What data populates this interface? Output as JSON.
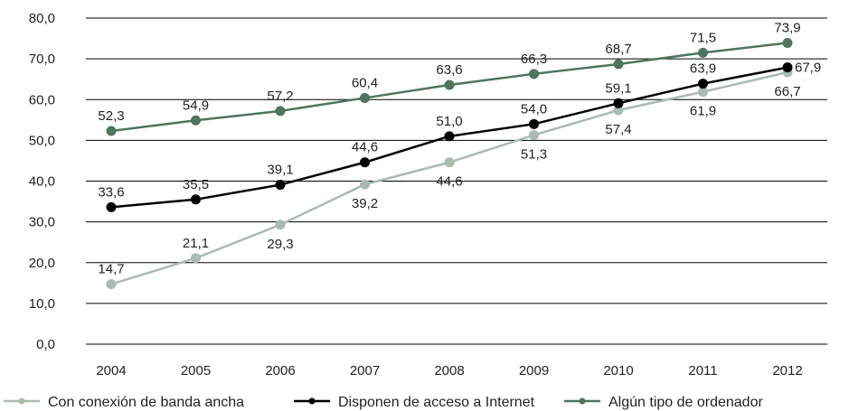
{
  "chart_data": {
    "type": "line",
    "categories": [
      "2004",
      "2005",
      "2006",
      "2007",
      "2008",
      "2009",
      "2010",
      "2011",
      "2012"
    ],
    "ylim": [
      0,
      80
    ],
    "yticks": [
      "0,0",
      "10,0",
      "20,0",
      "30,0",
      "40,0",
      "50,0",
      "60,0",
      "70,0",
      "80,0"
    ],
    "grid": true,
    "legend_position": "bottom",
    "series": [
      {
        "name": "Con conexión de banda ancha",
        "color": "#a9bbb0",
        "values": [
          14.7,
          21.1,
          29.3,
          39.2,
          44.6,
          51.3,
          57.4,
          61.9,
          66.7
        ],
        "labels": [
          "14,7",
          "21,1",
          "29,3",
          "39,2",
          "44,6",
          "51,3",
          "57,4",
          "61,9",
          "66,7"
        ]
      },
      {
        "name": "Disponen de acceso a Internet",
        "color": "#000000",
        "values": [
          33.6,
          35.5,
          39.1,
          44.6,
          51.0,
          54.0,
          59.1,
          63.9,
          67.9
        ],
        "labels": [
          "33,6",
          "35,5",
          "39,1",
          "44,6",
          "51,0",
          "54,0",
          "59,1",
          "63,9",
          "67,9"
        ]
      },
      {
        "name": "Algún tipo de ordenador",
        "color": "#4d7560",
        "values": [
          52.3,
          54.9,
          57.2,
          60.4,
          63.6,
          66.3,
          68.7,
          71.5,
          73.9
        ],
        "labels": [
          "52,3",
          "54,9",
          "57,2",
          "60,4",
          "63,6",
          "66,3",
          "68,7",
          "71,5",
          "73,9"
        ]
      }
    ]
  }
}
